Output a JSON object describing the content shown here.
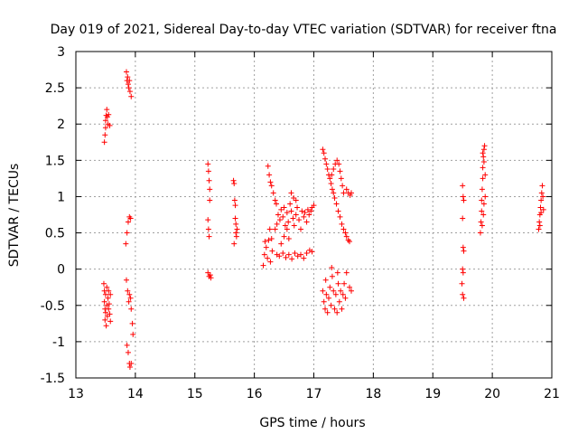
{
  "chart_data": {
    "type": "scatter",
    "title": "Day 019 of 2021, Sidereal Day-to-day VTEC variation (SDTVAR) for receiver ftna",
    "xlabel": "GPS time / hours",
    "ylabel": "SDTVAR / TECUs",
    "xlim": [
      13,
      21
    ],
    "ylim": [
      -1.5,
      3
    ],
    "x_ticks": [
      "13",
      "14",
      "15",
      "16",
      "17",
      "18",
      "19",
      "20",
      "21"
    ],
    "y_ticks": [
      "3",
      "2.5",
      "2",
      "1.5",
      "1",
      "0.5",
      "0",
      "-0.5",
      "-1",
      "-1.5"
    ],
    "grid": true,
    "marker": "+",
    "series": [
      {
        "name": "SDTVAR",
        "color": "#ff0000",
        "points": [
          [
            13.48,
            1.75
          ],
          [
            13.49,
            1.85
          ],
          [
            13.5,
            1.95
          ],
          [
            13.5,
            2.05
          ],
          [
            13.51,
            2.12
          ],
          [
            13.52,
            2.2
          ],
          [
            13.53,
            2.1
          ],
          [
            13.54,
            2.0
          ],
          [
            13.55,
            2.13
          ],
          [
            13.57,
            1.98
          ],
          [
            13.47,
            -0.2
          ],
          [
            13.48,
            -0.3
          ],
          [
            13.48,
            -0.45
          ],
          [
            13.49,
            -0.55
          ],
          [
            13.49,
            -0.7
          ],
          [
            13.5,
            -0.35
          ],
          [
            13.5,
            -0.6
          ],
          [
            13.51,
            -0.78
          ],
          [
            13.52,
            -0.25
          ],
          [
            13.52,
            -0.5
          ],
          [
            13.53,
            -0.65
          ],
          [
            13.54,
            -0.4
          ],
          [
            13.55,
            -0.3
          ],
          [
            13.55,
            -0.55
          ],
          [
            13.56,
            -0.48
          ],
          [
            13.57,
            -0.62
          ],
          [
            13.58,
            -0.35
          ],
          [
            13.58,
            -0.72
          ],
          [
            13.85,
            2.72
          ],
          [
            13.86,
            2.6
          ],
          [
            13.87,
            2.65
          ],
          [
            13.88,
            2.55
          ],
          [
            13.89,
            2.5
          ],
          [
            13.9,
            2.6
          ],
          [
            13.91,
            2.45
          ],
          [
            13.93,
            2.38
          ],
          [
            13.84,
            0.35
          ],
          [
            13.86,
            0.5
          ],
          [
            13.88,
            0.65
          ],
          [
            13.9,
            0.72
          ],
          [
            13.92,
            0.7
          ],
          [
            13.85,
            -0.15
          ],
          [
            13.87,
            -0.3
          ],
          [
            13.89,
            -0.45
          ],
          [
            13.9,
            -0.35
          ],
          [
            13.92,
            -0.4
          ],
          [
            13.93,
            -0.55
          ],
          [
            13.95,
            -0.75
          ],
          [
            13.96,
            -0.9
          ],
          [
            13.86,
            -1.05
          ],
          [
            13.88,
            -1.15
          ],
          [
            13.9,
            -1.3
          ],
          [
            13.91,
            -1.35
          ],
          [
            13.93,
            -1.3
          ],
          [
            15.22,
            1.45
          ],
          [
            15.23,
            1.35
          ],
          [
            15.24,
            1.22
          ],
          [
            15.25,
            1.1
          ],
          [
            15.25,
            0.95
          ],
          [
            15.22,
            0.68
          ],
          [
            15.23,
            0.55
          ],
          [
            15.24,
            0.45
          ],
          [
            15.22,
            -0.05
          ],
          [
            15.24,
            -0.1
          ],
          [
            15.26,
            -0.08
          ],
          [
            15.27,
            -0.12
          ],
          [
            15.65,
            1.22
          ],
          [
            15.66,
            1.18
          ],
          [
            15.67,
            0.95
          ],
          [
            15.68,
            0.88
          ],
          [
            15.68,
            0.7
          ],
          [
            15.69,
            0.62
          ],
          [
            15.69,
            0.5
          ],
          [
            15.7,
            0.45
          ],
          [
            15.66,
            0.35
          ],
          [
            15.71,
            0.55
          ],
          [
            16.15,
            0.05
          ],
          [
            16.17,
            0.2
          ],
          [
            16.18,
            0.38
          ],
          [
            16.2,
            0.3
          ],
          [
            16.22,
            0.15
          ],
          [
            16.24,
            0.4
          ],
          [
            16.26,
            0.55
          ],
          [
            16.27,
            0.1
          ],
          [
            16.29,
            0.42
          ],
          [
            16.3,
            0.25
          ],
          [
            16.23,
            1.42
          ],
          [
            16.25,
            1.3
          ],
          [
            16.27,
            1.2
          ],
          [
            16.29,
            1.15
          ],
          [
            16.32,
            1.05
          ],
          [
            16.35,
            0.95
          ],
          [
            16.37,
            0.9
          ],
          [
            16.35,
            0.55
          ],
          [
            16.38,
            0.62
          ],
          [
            16.4,
            0.75
          ],
          [
            16.43,
            0.68
          ],
          [
            16.45,
            0.82
          ],
          [
            16.48,
            0.72
          ],
          [
            16.5,
            0.85
          ],
          [
            16.52,
            0.6
          ],
          [
            16.55,
            0.78
          ],
          [
            16.57,
            0.65
          ],
          [
            16.6,
            0.9
          ],
          [
            16.62,
            0.8
          ],
          [
            16.65,
            0.7
          ],
          [
            16.67,
            0.6
          ],
          [
            16.7,
            0.75
          ],
          [
            16.72,
            0.85
          ],
          [
            16.75,
            0.68
          ],
          [
            16.78,
            0.55
          ],
          [
            16.8,
            0.8
          ],
          [
            16.83,
            0.72
          ],
          [
            16.85,
            0.78
          ],
          [
            16.88,
            0.65
          ],
          [
            16.9,
            0.82
          ],
          [
            16.92,
            0.75
          ],
          [
            16.95,
            0.8
          ],
          [
            16.97,
            0.85
          ],
          [
            17.0,
            0.88
          ],
          [
            16.38,
            0.2
          ],
          [
            16.42,
            0.18
          ],
          [
            16.48,
            0.22
          ],
          [
            16.53,
            0.16
          ],
          [
            16.58,
            0.2
          ],
          [
            16.63,
            0.14
          ],
          [
            16.68,
            0.22
          ],
          [
            16.73,
            0.18
          ],
          [
            16.78,
            0.2
          ],
          [
            16.83,
            0.15
          ],
          [
            16.88,
            0.22
          ],
          [
            16.93,
            0.26
          ],
          [
            16.97,
            0.24
          ],
          [
            16.45,
            0.35
          ],
          [
            16.5,
            0.45
          ],
          [
            16.55,
            0.55
          ],
          [
            16.58,
            0.42
          ],
          [
            16.62,
            1.05
          ],
          [
            16.66,
            0.98
          ],
          [
            16.7,
            0.95
          ],
          [
            17.15,
            1.65
          ],
          [
            17.17,
            1.6
          ],
          [
            17.19,
            1.52
          ],
          [
            17.21,
            1.45
          ],
          [
            17.23,
            1.38
          ],
          [
            17.25,
            1.3
          ],
          [
            17.27,
            1.25
          ],
          [
            17.29,
            1.18
          ],
          [
            17.31,
            1.1
          ],
          [
            17.33,
            1.05
          ],
          [
            17.35,
            0.98
          ],
          [
            17.3,
            1.3
          ],
          [
            17.33,
            1.38
          ],
          [
            17.36,
            1.45
          ],
          [
            17.39,
            1.5
          ],
          [
            17.42,
            1.45
          ],
          [
            17.44,
            1.35
          ],
          [
            17.46,
            1.25
          ],
          [
            17.48,
            1.15
          ],
          [
            17.5,
            1.05
          ],
          [
            17.38,
            0.9
          ],
          [
            17.41,
            0.8
          ],
          [
            17.44,
            0.72
          ],
          [
            17.47,
            0.62
          ],
          [
            17.5,
            0.55
          ],
          [
            17.53,
            0.5
          ],
          [
            17.55,
            0.45
          ],
          [
            17.58,
            0.4
          ],
          [
            17.6,
            0.38
          ],
          [
            17.55,
            1.1
          ],
          [
            17.58,
            1.05
          ],
          [
            17.61,
            1.02
          ],
          [
            17.63,
            1.05
          ],
          [
            17.15,
            -0.3
          ],
          [
            17.17,
            -0.45
          ],
          [
            17.19,
            -0.55
          ],
          [
            17.21,
            -0.35
          ],
          [
            17.23,
            -0.6
          ],
          [
            17.25,
            -0.4
          ],
          [
            17.27,
            -0.25
          ],
          [
            17.29,
            -0.5
          ],
          [
            17.31,
            -0.1
          ],
          [
            17.33,
            -0.3
          ],
          [
            17.35,
            -0.55
          ],
          [
            17.37,
            -0.35
          ],
          [
            17.39,
            -0.6
          ],
          [
            17.41,
            -0.2
          ],
          [
            17.43,
            -0.45
          ],
          [
            17.45,
            -0.3
          ],
          [
            17.47,
            -0.55
          ],
          [
            17.49,
            -0.35
          ],
          [
            17.51,
            -0.2
          ],
          [
            17.53,
            -0.4
          ],
          [
            17.3,
            0.02
          ],
          [
            17.4,
            -0.05
          ],
          [
            17.55,
            -0.05
          ],
          [
            17.6,
            -0.25
          ],
          [
            17.63,
            -0.3
          ],
          [
            17.2,
            -0.15
          ],
          [
            19.5,
            1.15
          ],
          [
            19.51,
            1.0
          ],
          [
            19.52,
            0.95
          ],
          [
            19.5,
            0.7
          ],
          [
            19.51,
            0.3
          ],
          [
            19.52,
            0.25
          ],
          [
            19.5,
            0.0
          ],
          [
            19.51,
            -0.05
          ],
          [
            19.49,
            -0.2
          ],
          [
            19.5,
            -0.35
          ],
          [
            19.52,
            -0.4
          ],
          [
            19.8,
            0.5
          ],
          [
            19.81,
            0.65
          ],
          [
            19.82,
            0.8
          ],
          [
            19.82,
            0.95
          ],
          [
            19.83,
            1.1
          ],
          [
            19.84,
            1.25
          ],
          [
            19.84,
            1.4
          ],
          [
            19.85,
            1.55
          ],
          [
            19.86,
            1.65
          ],
          [
            19.87,
            1.7
          ],
          [
            19.83,
            0.6
          ],
          [
            19.85,
            0.75
          ],
          [
            19.86,
            0.9
          ],
          [
            19.88,
            1.0
          ],
          [
            19.84,
            1.6
          ],
          [
            19.86,
            1.48
          ],
          [
            19.88,
            1.3
          ],
          [
            20.78,
            0.55
          ],
          [
            20.79,
            0.65
          ],
          [
            20.8,
            0.75
          ],
          [
            20.81,
            0.85
          ],
          [
            20.82,
            0.95
          ],
          [
            20.83,
            1.05
          ],
          [
            20.84,
            1.15
          ],
          [
            20.85,
            1.0
          ],
          [
            20.8,
            0.6
          ],
          [
            20.86,
            0.82
          ],
          [
            20.82,
            0.78
          ]
        ]
      }
    ]
  }
}
